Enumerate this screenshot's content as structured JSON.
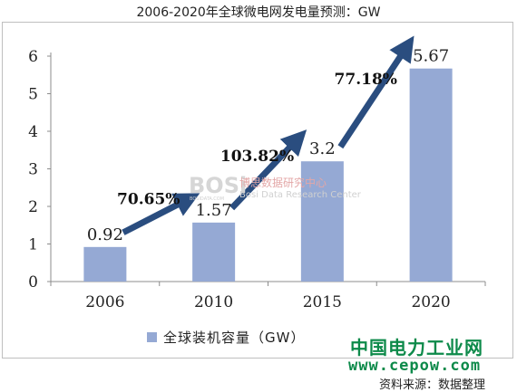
{
  "header": {
    "title": "2006-2020年全球微电网发电量预测：GW"
  },
  "chart_data": {
    "type": "bar",
    "categories": [
      "2006",
      "2010",
      "2015",
      "2020"
    ],
    "series": [
      {
        "name": "全球装机容量（GW）",
        "values": [
          0.92,
          1.57,
          3.2,
          5.67
        ],
        "color": "#95a9d4"
      }
    ],
    "data_labels": [
      "0.92",
      "1.57",
      "3.2",
      "5.67"
    ],
    "y_ticks": [
      "0",
      "1",
      "2",
      "3",
      "4",
      "5",
      "6"
    ],
    "ylim": [
      0,
      6
    ],
    "grid": false,
    "legend_position": "bottom",
    "annotations": [
      {
        "text": "70.65%",
        "from": "2006",
        "to": "2010"
      },
      {
        "text": "103.82%",
        "from": "2010",
        "to": "2015"
      },
      {
        "text": "77.18%",
        "from": "2015",
        "to": "2020"
      }
    ],
    "arrow_color": "#2a4d7f"
  },
  "watermarks": {
    "logo_text": "BOSi",
    "logo_sub": "BOSIDATA.COM",
    "cn_text": "博思数据研究中心",
    "en_text": "Bosi Data Research Center",
    "site_cn": "中国电力工业网",
    "site_url": "www.cepow.com"
  },
  "source": "资料来源：数据整理"
}
